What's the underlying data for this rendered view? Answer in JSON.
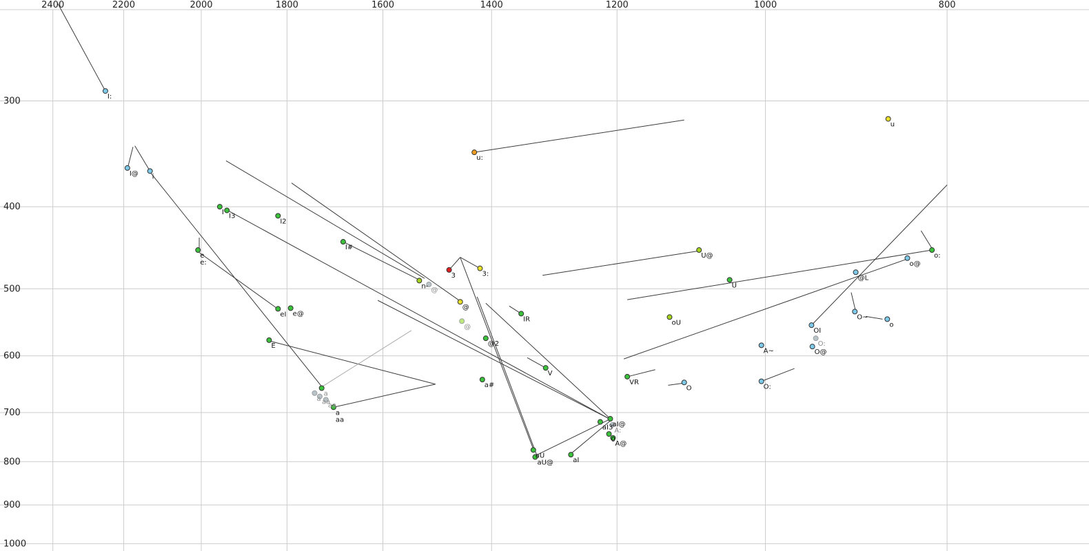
{
  "chart_data": {
    "type": "scatter",
    "description": "Vowel formant plot (F2 horizontal reversed log scale, F1 vertical log scale) with phoneme labels and trajectory lines",
    "x_axis": {
      "scale": "log",
      "reversed": true,
      "max": 2561,
      "min": 672,
      "ticks": [
        2400,
        2200,
        2000,
        1800,
        1600,
        1400,
        1200,
        1000,
        800
      ]
    },
    "y_axis": {
      "scale": "log",
      "min": 228,
      "max": 1020,
      "ticks": [
        300,
        400,
        500,
        600,
        700,
        800,
        900,
        1000
      ]
    },
    "grid": true,
    "palette": {
      "blue": "#7ec8e8",
      "green": "#3cc13c",
      "yellowgreen": "#a6d41e",
      "yellow": "#e8df2a",
      "orange": "#f09e22",
      "red": "#df1f1f",
      "gray": "#b9c2c6",
      "palegreen": "#bce87e"
    },
    "styles": {
      "background": "#ffffff",
      "grid_color": "#cccccc",
      "line_color": "#3c3c3c",
      "line_light_color": "#aaaaaa",
      "tick_text_color": "#222222",
      "label_text_color": "#111111",
      "label_text_faded_color": "#8c8c8c",
      "point_stroke_color": "#333333",
      "point_stroke_faded_color": "#9aa0a3"
    },
    "points": [
      {
        "label": "I:",
        "f2": 2250,
        "f1": 292,
        "color": "blue"
      },
      {
        "label": "u",
        "f2": 860,
        "f1": 315,
        "color": "yellow"
      },
      {
        "label": "u:",
        "f2": 1430,
        "f1": 345,
        "color": "orange"
      },
      {
        "label": "I@",
        "f2": 2190,
        "f1": 360,
        "color": "blue"
      },
      {
        "label": "i",
        "f2": 2130,
        "f1": 363,
        "color": "blue"
      },
      {
        "label": "I",
        "f2": 1955,
        "f1": 400,
        "color": "green"
      },
      {
        "label": "I3",
        "f2": 1938,
        "f1": 404,
        "color": "green"
      },
      {
        "label": "I2",
        "f2": 1820,
        "f1": 410,
        "color": "green"
      },
      {
        "label": "I#",
        "f2": 1680,
        "f1": 440,
        "color": "green"
      },
      {
        "label": "e",
        "label2": "e:",
        "f2": 2008,
        "f1": 450,
        "color": "green"
      },
      {
        "label": "U@",
        "f2": 1085,
        "f1": 450,
        "color": "yellowgreen"
      },
      {
        "label": "o:",
        "f2": 815,
        "f1": 450,
        "color": "green"
      },
      {
        "label": "o@",
        "f2": 840,
        "f1": 460,
        "color": "blue"
      },
      {
        "label": "3",
        "f2": 1475,
        "f1": 475,
        "color": "red"
      },
      {
        "label": "3:",
        "f2": 1420,
        "f1": 473,
        "color": "yellow"
      },
      {
        "label": "@L",
        "f2": 895,
        "f1": 478,
        "color": "blue"
      },
      {
        "label": "U",
        "f2": 1045,
        "f1": 488,
        "color": "green"
      },
      {
        "label": "n-",
        "f2": 1530,
        "f1": 489,
        "color": "yellowgreen"
      },
      {
        "label": "@",
        "f2": 1512,
        "f1": 494,
        "color": "gray",
        "label_color": "gray"
      },
      {
        "label": "@",
        "f2": 1455,
        "f1": 518,
        "color": "yellow"
      },
      {
        "label": "eI",
        "f2": 1820,
        "f1": 528,
        "color": "green"
      },
      {
        "label": "e@",
        "f2": 1792,
        "f1": 527,
        "color": "green"
      },
      {
        "label": "IR",
        "f2": 1350,
        "f1": 535,
        "color": "green"
      },
      {
        "label": "oU",
        "f2": 1125,
        "f1": 540,
        "color": "yellowgreen"
      },
      {
        "label": "O~",
        "f2": 896,
        "f1": 532,
        "color": "blue"
      },
      {
        "label": "o",
        "f2": 861,
        "f1": 543,
        "color": "blue"
      },
      {
        "label": "OI",
        "f2": 945,
        "f1": 552,
        "color": "blue"
      },
      {
        "label": "O:",
        "f2": 940,
        "f1": 572,
        "color": "gray",
        "label_color": "gray"
      },
      {
        "label": "O@",
        "f2": 944,
        "f1": 585,
        "color": "blue"
      },
      {
        "label": "@2",
        "f2": 1410,
        "f1": 572,
        "color": "green"
      },
      {
        "label": "@",
        "f2": 1452,
        "f1": 546,
        "color": "palegreen",
        "label_color": "gray"
      },
      {
        "label": "E",
        "f2": 1840,
        "f1": 575,
        "color": "green"
      },
      {
        "label": "A~",
        "f2": 1005,
        "f1": 583,
        "color": "blue"
      },
      {
        "label": "V",
        "f2": 1310,
        "f1": 620,
        "color": "green"
      },
      {
        "label": "VR",
        "f2": 1185,
        "f1": 635,
        "color": "green"
      },
      {
        "label": "O",
        "f2": 1105,
        "f1": 645,
        "color": "blue"
      },
      {
        "label": "O:",
        "f2": 1005,
        "f1": 643,
        "color": "blue"
      },
      {
        "label": "a#",
        "f2": 1416,
        "f1": 640,
        "color": "green"
      },
      {
        "label": "a",
        "f2": 1725,
        "f1": 655,
        "color": "green",
        "label_color": "gray"
      },
      {
        "label": "a",
        "f2": 1740,
        "f1": 664,
        "color": "gray",
        "label_color": "gray"
      },
      {
        "label": "aa",
        "f2": 1729,
        "f1": 670,
        "color": "gray",
        "label_color": "gray"
      },
      {
        "label": "aa",
        "f2": 1716,
        "f1": 676,
        "color": "gray",
        "label_color": "gray"
      },
      {
        "label": "a",
        "label2": "aa",
        "f2": 1700,
        "f1": 690,
        "color": "green"
      },
      {
        "label": "aI@",
        "f2": 1210,
        "f1": 712,
        "color": "green"
      },
      {
        "label": "aI3",
        "f2": 1225,
        "f1": 718,
        "color": "green"
      },
      {
        "label": "A:",
        "f2": 1207,
        "f1": 724,
        "color": "gray",
        "label_color": "gray"
      },
      {
        "label": "0",
        "f2": 1212,
        "f1": 742,
        "color": "green"
      },
      {
        "label": "A@",
        "f2": 1206,
        "f1": 750,
        "color": "green"
      },
      {
        "label": "aU",
        "f2": 1330,
        "f1": 775,
        "color": "green"
      },
      {
        "label": "aU@",
        "f2": 1327,
        "f1": 790,
        "color": "green"
      },
      {
        "label": "aI",
        "f2": 1270,
        "f1": 785,
        "color": "green"
      }
    ],
    "segments": [
      {
        "f2a": 2386,
        "f1a": 230,
        "f2b": 2250,
        "f1b": 292
      },
      {
        "f2a": 2170,
        "f1a": 339,
        "f2b": 2130,
        "f1b": 363
      },
      {
        "f2a": 2175,
        "f1a": 340,
        "f2b": 2190,
        "f1b": 361
      },
      {
        "f2a": 1940,
        "f1a": 353,
        "f2b": 1520,
        "f1b": 486
      },
      {
        "f2a": 1790,
        "f1a": 375,
        "f2b": 1455,
        "f1b": 517
      },
      {
        "f2a": 1430,
        "f1a": 345,
        "f2b": 1105,
        "f1b": 316
      },
      {
        "f2a": 2005,
        "f1a": 435,
        "f2b": 2005,
        "f1b": 450
      },
      {
        "f2a": 2005,
        "f1a": 453,
        "f2b": 1825,
        "f1b": 526
      },
      {
        "f2a": 2130,
        "f1a": 364,
        "f2b": 1725,
        "f1b": 652
      },
      {
        "f2a": 1940,
        "f1a": 403,
        "f2b": 1210,
        "f1b": 713
      },
      {
        "f2a": 1680,
        "f1a": 440,
        "f2b": 1530,
        "f1b": 488
      },
      {
        "f2a": 1610,
        "f1a": 516,
        "f2b": 1210,
        "f1b": 713
      },
      {
        "f2a": 1410,
        "f1a": 520,
        "f2b": 1210,
        "f1b": 712
      },
      {
        "f2a": 1455,
        "f1a": 459,
        "f2b": 1475,
        "f1b": 475
      },
      {
        "f2a": 1455,
        "f1a": 459,
        "f2b": 1420,
        "f1b": 473
      },
      {
        "f2a": 1455,
        "f1a": 459,
        "f2b": 1330,
        "f1b": 773
      },
      {
        "f2a": 1425,
        "f1a": 511,
        "f2b": 1325,
        "f1b": 784
      },
      {
        "f2a": 800,
        "f1a": 377,
        "f2b": 945,
        "f1b": 552
      },
      {
        "f2a": 815,
        "f1a": 450,
        "f2b": 1185,
        "f1b": 515
      },
      {
        "f2a": 1085,
        "f1a": 451,
        "f2b": 1315,
        "f1b": 482
      },
      {
        "f2a": 840,
        "f1a": 461,
        "f2b": 1190,
        "f1b": 605
      },
      {
        "f2a": 900,
        "f1a": 505,
        "f2b": 895,
        "f1b": 532
      },
      {
        "f2a": 884,
        "f1a": 539,
        "f2b": 866,
        "f1b": 543
      },
      {
        "f2a": 826,
        "f1a": 427,
        "f2b": 815,
        "f1b": 448
      },
      {
        "f2a": 1005,
        "f1a": 643,
        "f2b": 965,
        "f1b": 621
      },
      {
        "f2a": 1127,
        "f1a": 650,
        "f2b": 1105,
        "f1b": 646
      },
      {
        "f2a": 1185,
        "f1a": 635,
        "f2b": 1145,
        "f1b": 623
      },
      {
        "f2a": 1310,
        "f1a": 620,
        "f2b": 1340,
        "f1b": 603
      },
      {
        "f2a": 1350,
        "f1a": 535,
        "f2b": 1370,
        "f1b": 524
      },
      {
        "f2a": 1840,
        "f1a": 576,
        "f2b": 1500,
        "f1b": 648
      },
      {
        "f2a": 1700,
        "f1a": 690,
        "f2b": 1500,
        "f1b": 648
      },
      {
        "f2a": 1725,
        "f1a": 653,
        "f2b": 1545,
        "f1b": 560,
        "light": true
      },
      {
        "f2a": 1325,
        "f1a": 786,
        "f2b": 1211,
        "f1b": 713
      },
      {
        "f2a": 1270,
        "f1a": 783,
        "f2b": 1210,
        "f1b": 716
      }
    ]
  }
}
